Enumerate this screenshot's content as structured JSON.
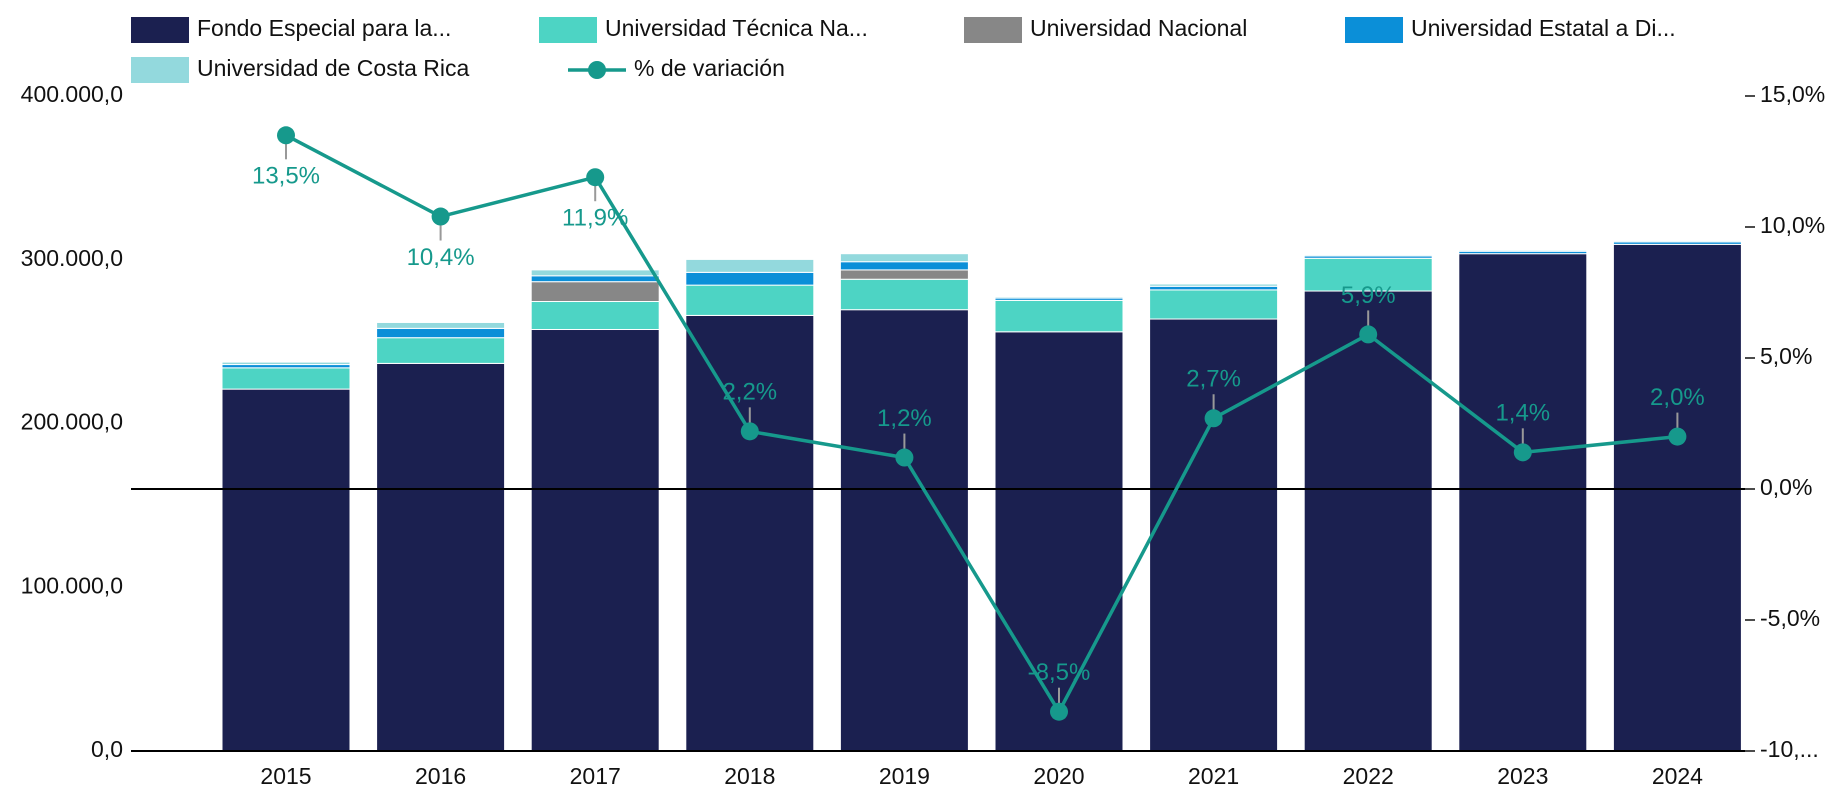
{
  "chart_data": {
    "type": "bar_line",
    "categories": [
      "2015",
      "2016",
      "2017",
      "2018",
      "2019",
      "2020",
      "2021",
      "2022",
      "2023",
      "2024"
    ],
    "series": [
      {
        "name": "Fondo Especial para la...",
        "color": "#1b2050",
        "values": [
          221000,
          236700,
          257400,
          266000,
          269500,
          256000,
          263800,
          280900,
          303700,
          309400
        ]
      },
      {
        "name": "Universidad Técnica Na...",
        "color": "#4dd4c4",
        "values": [
          13000,
          15700,
          17100,
          18500,
          18600,
          19200,
          17800,
          20000,
          0,
          0
        ]
      },
      {
        "name": "Universidad Nacional",
        "color": "#878787",
        "values": [
          0,
          0,
          12100,
          0,
          5700,
          0,
          0,
          0,
          0,
          0
        ]
      },
      {
        "name": "Universidad Estatal a Di...",
        "color": "#0b8fd8",
        "values": [
          2000,
          5700,
          3600,
          7800,
          5000,
          1400,
          2200,
          1400,
          1500,
          1500
        ]
      },
      {
        "name": "Universidad de Costa Rica",
        "color": "#93d9dd",
        "values": [
          1500,
          3600,
          3600,
          7900,
          4900,
          800,
          1400,
          700,
          700,
          700
        ]
      },
      {
        "name": "% de variación",
        "color": "#16998c",
        "axis": "y2",
        "values": [
          13.5,
          10.4,
          11.9,
          2.2,
          1.2,
          -8.5,
          2.7,
          5.9,
          1.4,
          2.0
        ],
        "value_labels": [
          "13,5%",
          "10,4%",
          "11,9%",
          "2,2%",
          "1,2%",
          "-8,5%",
          "2,7%",
          "5,9%",
          "1,4%",
          "2,0%"
        ]
      }
    ],
    "ylim": [
      0,
      400000
    ],
    "yticks": [
      {
        "value": 0,
        "label": "0,0"
      },
      {
        "value": 100000,
        "label": "100.000,0"
      },
      {
        "value": 200000,
        "label": "200.000,0"
      },
      {
        "value": 300000,
        "label": "300.000,0"
      },
      {
        "value": 400000,
        "label": "400.000,0"
      }
    ],
    "y2lim": [
      -10,
      15
    ],
    "y2ticks": [
      {
        "value": -10,
        "label": "-10,..."
      },
      {
        "value": -5,
        "label": "-5,0%"
      },
      {
        "value": 0,
        "label": "0,0%"
      },
      {
        "value": 5,
        "label": "5,0%"
      },
      {
        "value": 10,
        "label": "10,0%"
      },
      {
        "value": 15,
        "label": "15,0%"
      }
    ]
  }
}
